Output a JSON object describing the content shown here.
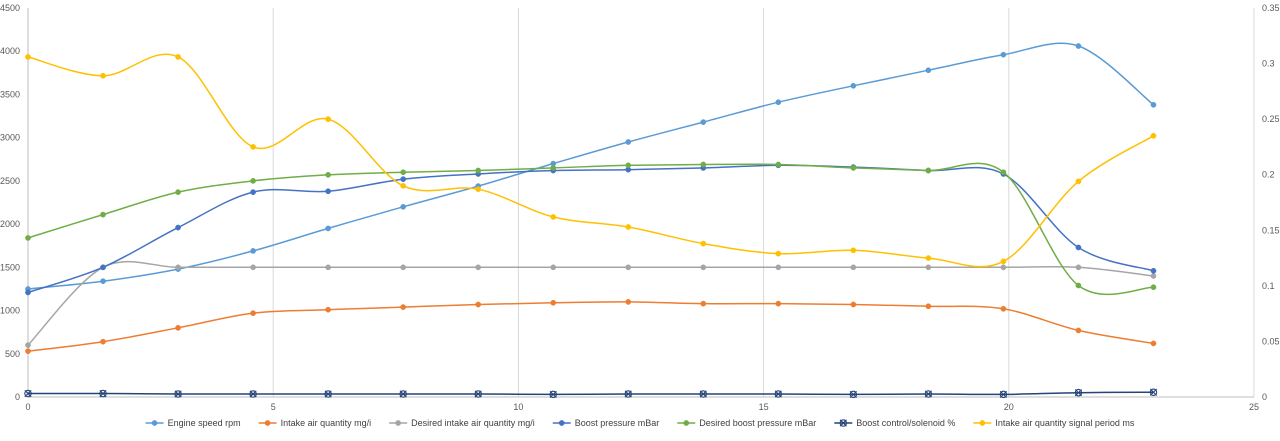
{
  "chart_data": {
    "type": "line",
    "x_range": [
      0,
      25
    ],
    "x_ticks": [
      0,
      5,
      10,
      15,
      20,
      25
    ],
    "y_left_range": [
      0,
      4500
    ],
    "y_left_ticks": [
      0,
      500,
      1000,
      1500,
      2000,
      2500,
      3000,
      3500,
      4000,
      4500
    ],
    "y_right_range": [
      0,
      0.35
    ],
    "y_right_ticks": [
      "0",
      "0.05",
      "0.1",
      "0.15",
      "0.2",
      "0.25",
      "0.3",
      "0.35"
    ],
    "grid": "vertical",
    "legend_position": "bottom",
    "series": [
      {
        "name": "Engine speed rpm",
        "color": "#5B9BD5",
        "axis": "left",
        "marker": "circle",
        "x": [
          0,
          1.53,
          3.06,
          4.59,
          6.12,
          7.65,
          9.18,
          10.71,
          12.24,
          13.77,
          15.3,
          16.83,
          18.36,
          19.89,
          21.42,
          22.95
        ],
        "y": [
          1250,
          1340,
          1480,
          1690,
          1950,
          2200,
          2440,
          2700,
          2950,
          3180,
          3410,
          3600,
          3780,
          3960,
          4060,
          3380
        ]
      },
      {
        "name": "Intake air quantity mg/i",
        "color": "#ED7D31",
        "axis": "left",
        "marker": "circle",
        "x": [
          0,
          1.53,
          3.06,
          4.59,
          6.12,
          7.65,
          9.18,
          10.71,
          12.24,
          13.77,
          15.3,
          16.83,
          18.36,
          19.89,
          21.42,
          22.95
        ],
        "y": [
          530,
          640,
          800,
          970,
          1010,
          1040,
          1070,
          1090,
          1100,
          1080,
          1080,
          1070,
          1050,
          1020,
          770,
          620
        ]
      },
      {
        "name": "Desired intake air quantity mg/i",
        "color": "#A5A5A5",
        "axis": "left",
        "marker": "circle",
        "x": [
          0,
          1.53,
          3.06,
          4.59,
          6.12,
          7.65,
          9.18,
          10.71,
          12.24,
          13.77,
          15.3,
          16.83,
          18.36,
          19.89,
          21.42,
          22.95
        ],
        "y": [
          600,
          1500,
          1500,
          1500,
          1500,
          1500,
          1500,
          1500,
          1500,
          1500,
          1500,
          1500,
          1500,
          1500,
          1500,
          1400
        ]
      },
      {
        "name": "Boost pressure mBar",
        "color": "#4472C4",
        "axis": "left",
        "marker": "circle",
        "x": [
          0,
          1.53,
          3.06,
          4.59,
          6.12,
          7.65,
          9.18,
          10.71,
          12.24,
          13.77,
          15.3,
          16.83,
          18.36,
          19.89,
          21.42,
          22.95
        ],
        "y": [
          1210,
          1500,
          1960,
          2370,
          2380,
          2520,
          2580,
          2620,
          2630,
          2650,
          2680,
          2660,
          2620,
          2580,
          1730,
          1460
        ]
      },
      {
        "name": "Desired boost pressure mBar",
        "color": "#70AD47",
        "axis": "left",
        "marker": "circle",
        "x": [
          0,
          1.53,
          3.06,
          4.59,
          6.12,
          7.65,
          9.18,
          10.71,
          12.24,
          13.77,
          15.3,
          16.83,
          18.36,
          19.89,
          21.42,
          22.95
        ],
        "y": [
          1840,
          2110,
          2370,
          2500,
          2570,
          2600,
          2620,
          2650,
          2680,
          2690,
          2690,
          2650,
          2620,
          2600,
          1290,
          1270
        ]
      },
      {
        "name": "Boost control/solenoid %",
        "color": "#264478",
        "axis": "left",
        "marker": "x",
        "x": [
          0,
          1.53,
          3.06,
          4.59,
          6.12,
          7.65,
          9.18,
          10.71,
          12.24,
          13.77,
          15.3,
          16.83,
          18.36,
          19.89,
          21.42,
          22.95
        ],
        "y": [
          40,
          40,
          35,
          35,
          35,
          35,
          35,
          30,
          35,
          35,
          35,
          30,
          35,
          30,
          50,
          55
        ]
      },
      {
        "name": "Intake air quantity signal period ms",
        "color": "#FFC000",
        "axis": "right",
        "marker": "circle",
        "x": [
          0,
          1.53,
          3.06,
          4.59,
          6.12,
          7.65,
          9.18,
          10.71,
          12.24,
          13.77,
          15.3,
          16.83,
          18.36,
          19.89,
          21.42,
          22.95
        ],
        "y": [
          0.306,
          0.289,
          0.306,
          0.225,
          0.25,
          0.19,
          0.187,
          0.162,
          0.153,
          0.138,
          0.129,
          0.132,
          0.125,
          0.122,
          0.194,
          0.235
        ]
      }
    ]
  }
}
